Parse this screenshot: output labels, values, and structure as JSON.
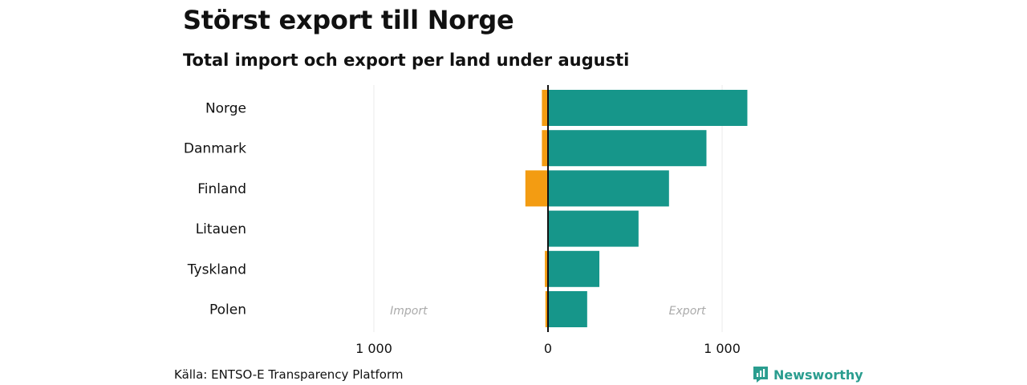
{
  "header": {
    "title": "Störst export till Norge",
    "subtitle": "Total import och export per land under augusti"
  },
  "footer": {
    "source": "Källa: ENTSO-E Transparency Platform",
    "brand": "Newsworthy"
  },
  "colors": {
    "import": "#f39c12",
    "export": "#16968a",
    "brand": "#2a9d8f"
  },
  "icons": {
    "brand_logo": "newsworthy-logo-icon"
  },
  "chart_data": {
    "type": "bar",
    "orientation": "horizontal",
    "categories": [
      "Norge",
      "Danmark",
      "Finland",
      "Litauen",
      "Tyskland",
      "Polen"
    ],
    "series": [
      {
        "key": "import",
        "values": [
          -35,
          -35,
          -130,
          0,
          -18,
          -15
        ]
      },
      {
        "key": "export",
        "values": [
          1145,
          910,
          695,
          520,
          295,
          225
        ]
      }
    ],
    "xlim": [
      -1000,
      1000
    ],
    "xticks": [
      {
        "value": -1000,
        "label": "1 000"
      },
      {
        "value": 0,
        "label": "0"
      },
      {
        "value": 1000,
        "label": "1 000"
      }
    ],
    "annotations": [
      {
        "text": "Import",
        "x": -800
      },
      {
        "text": "Export",
        "x": 800
      }
    ],
    "grid": true
  }
}
